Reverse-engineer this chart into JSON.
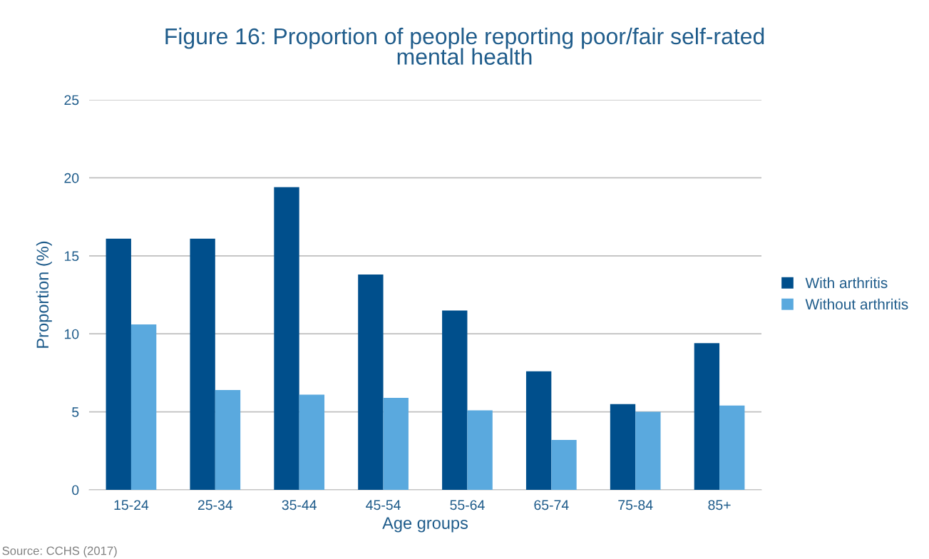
{
  "chart_data": {
    "type": "bar",
    "title": "Figure 16: Proportion of people reporting poor/fair self-rated\nmental health",
    "xlabel": "Age groups",
    "ylabel": "Proportion (%)",
    "categories": [
      "15-24",
      "25-34",
      "35-44",
      "45-54",
      "55-64",
      "65-74",
      "75-84",
      "85+"
    ],
    "series": [
      {
        "name": "With arthritis",
        "color": "#004f8c",
        "values": [
          16.1,
          16.1,
          19.4,
          13.8,
          11.5,
          7.6,
          5.5,
          9.4
        ]
      },
      {
        "name": "Without arthritis",
        "color": "#5aa9de",
        "values": [
          10.6,
          6.4,
          6.1,
          5.9,
          5.1,
          3.2,
          5.0,
          5.4
        ]
      }
    ],
    "ylim": [
      0,
      25
    ],
    "yticks": [
      0,
      5,
      10,
      15,
      20,
      25
    ],
    "grid": "y",
    "legend": "right",
    "annotations": [
      "Source: CCHS (2017)"
    ]
  }
}
